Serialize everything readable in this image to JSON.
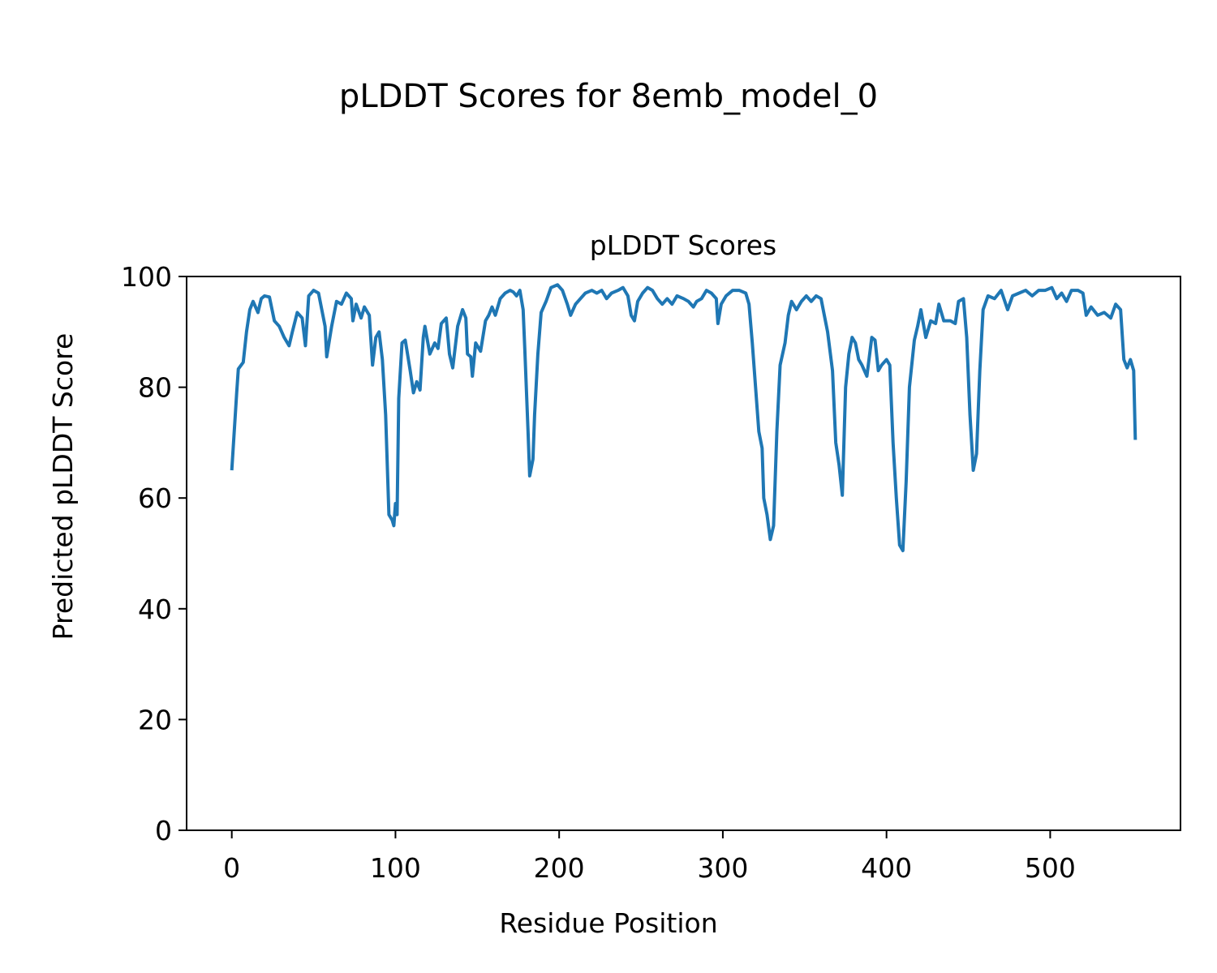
{
  "chart_data": {
    "type": "line",
    "title": "pLDDT Scores for 8emb_model_0",
    "subtitle": "pLDDT Scores",
    "x_label": "Residue Position",
    "y_label": "Predicted pLDDT Score",
    "xlim": [
      -27.6,
      579.6
    ],
    "xticks": [
      0,
      100,
      200,
      300,
      400,
      500
    ],
    "ylim": [
      0,
      100
    ],
    "yticks": [
      0,
      20,
      40,
      60,
      80,
      100
    ],
    "grid": false,
    "x": [
      0,
      3,
      4,
      7,
      9,
      11,
      13,
      16,
      18,
      20,
      23,
      26,
      29,
      32,
      35,
      37,
      40,
      43,
      45,
      47,
      50,
      53,
      55,
      57,
      58,
      61,
      64,
      67,
      70,
      73,
      74,
      76,
      79,
      81,
      84,
      86,
      88,
      90,
      92,
      94,
      96,
      98,
      99,
      100,
      101,
      102,
      104,
      106,
      109,
      111,
      113,
      115,
      117,
      118,
      121,
      124,
      126,
      128,
      131,
      133,
      135,
      138,
      141,
      143,
      144,
      146,
      147,
      149,
      152,
      155,
      157,
      159,
      161,
      164,
      167,
      170,
      172,
      174,
      176,
      178,
      179,
      181,
      182,
      184,
      185,
      187,
      189,
      192,
      195,
      199,
      202,
      205,
      207,
      210,
      213,
      216,
      220,
      223,
      226,
      229,
      232,
      236,
      239,
      242,
      244,
      246,
      248,
      251,
      254,
      257,
      260,
      263,
      266,
      269,
      272,
      276,
      279,
      282,
      284,
      287,
      290,
      293,
      296,
      297,
      299,
      302,
      306,
      310,
      314,
      316,
      318,
      320,
      322,
      324,
      325,
      327,
      329,
      331,
      333,
      335,
      338,
      340,
      342,
      345,
      348,
      351,
      354,
      357,
      360,
      362,
      364,
      367,
      369,
      371,
      373,
      375,
      377,
      379,
      381,
      383,
      385,
      388,
      391,
      393,
      395,
      397,
      400,
      402,
      404,
      406,
      408,
      410,
      412,
      414,
      417,
      419,
      421,
      424,
      427,
      430,
      432,
      435,
      439,
      442,
      444,
      447,
      449,
      451,
      453,
      455,
      457,
      459,
      462,
      466,
      470,
      474,
      477,
      481,
      485,
      489,
      493,
      497,
      501,
      504,
      507,
      510,
      513,
      517,
      520,
      522,
      525,
      529,
      533,
      537,
      540,
      543,
      545,
      547,
      549,
      551,
      552
    ],
    "series": [
      {
        "name": "pLDDT",
        "color": "#1f77b4",
        "values": [
          65,
          79,
          83.3,
          84.5,
          90,
          94,
          95.5,
          93.5,
          96,
          96.5,
          96.3,
          92,
          91,
          89,
          87.5,
          90,
          93.5,
          92.5,
          87.5,
          96.5,
          97.5,
          97,
          94,
          91,
          85.5,
          91,
          95.5,
          95,
          97,
          96,
          92,
          95,
          92.5,
          94.5,
          93,
          84,
          89,
          90,
          85,
          75,
          57,
          56,
          55,
          59,
          57,
          78,
          88,
          88.5,
          83,
          79,
          81,
          79.5,
          89,
          91,
          86,
          88,
          87,
          91.5,
          92.5,
          86,
          83.5,
          91,
          94,
          92.5,
          86,
          85.5,
          82,
          88,
          86.5,
          92,
          93,
          94.5,
          93,
          96,
          97,
          97.5,
          97.2,
          96.5,
          97.5,
          94,
          87,
          72,
          64,
          67,
          75,
          86,
          93.5,
          95.5,
          98,
          98.5,
          97.5,
          95,
          93,
          95,
          96,
          97,
          97.5,
          97,
          97.5,
          96,
          97,
          97.5,
          98,
          96.5,
          93,
          92,
          95.5,
          97,
          98,
          97.5,
          96,
          95,
          96,
          95,
          96.5,
          96,
          95.5,
          94.5,
          95.5,
          96,
          97.5,
          97,
          96,
          91.5,
          95,
          96.5,
          97.5,
          97.5,
          97,
          95,
          88,
          80,
          72,
          69,
          60,
          57,
          52.5,
          55,
          72,
          84,
          88,
          93,
          95.5,
          94,
          95.5,
          96.5,
          95.5,
          96.5,
          96,
          93,
          90,
          83,
          70,
          66,
          60.5,
          80,
          86,
          89,
          88,
          85,
          84,
          82,
          89,
          88.5,
          83,
          84,
          85,
          84,
          70,
          60,
          51.5,
          50.5,
          63,
          80,
          88.5,
          91,
          94,
          89,
          92,
          91.5,
          95,
          92,
          92,
          91.5,
          95.5,
          96,
          89,
          75,
          65,
          68,
          83,
          94,
          96.5,
          96,
          97.5,
          94,
          96.5,
          97,
          97.5,
          96.5,
          97.5,
          97.5,
          98,
          96,
          97,
          95.5,
          97.5,
          97.5,
          97,
          93,
          94.5,
          93,
          93.5,
          92.5,
          95,
          94,
          85,
          83.5,
          85,
          83,
          70.5
        ]
      }
    ]
  }
}
